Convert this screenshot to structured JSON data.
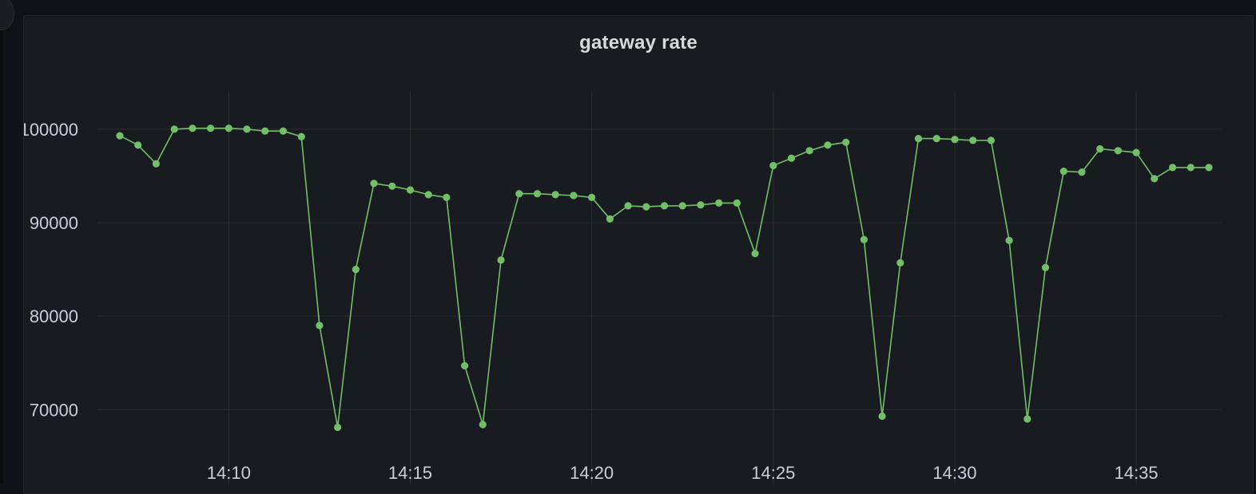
{
  "panel": {
    "title": "gateway rate"
  },
  "colors": {
    "background": "#111217",
    "panel_background": "#181b1f",
    "grid": "#2c2e33",
    "series": "#73bf69",
    "text": "#ccccdc"
  },
  "chart_data": {
    "type": "line",
    "title": "gateway rate",
    "xlabel": "",
    "ylabel": "",
    "grid": true,
    "legend": "none",
    "x_axis": {
      "unit": "time (HH:MM)",
      "range": [
        "14:07",
        "14:37"
      ],
      "ticks": [
        "14:10",
        "14:15",
        "14:20",
        "14:25",
        "14:30",
        "14:35"
      ]
    },
    "y_axis": {
      "range": [
        62000,
        104000
      ],
      "ticks": [
        "100000",
        "90000",
        "80000",
        "70000"
      ]
    },
    "series": [
      {
        "color": "#73bf69",
        "x": [
          "14:07:00",
          "14:07:30",
          "14:08:00",
          "14:08:30",
          "14:09:00",
          "14:09:30",
          "14:10:00",
          "14:10:30",
          "14:11:00",
          "14:11:30",
          "14:12:00",
          "14:12:30",
          "14:13:00",
          "14:13:30",
          "14:14:00",
          "14:14:30",
          "14:15:00",
          "14:15:30",
          "14:16:00",
          "14:16:30",
          "14:17:00",
          "14:17:30",
          "14:18:00",
          "14:18:30",
          "14:19:00",
          "14:19:30",
          "14:20:00",
          "14:20:30",
          "14:21:00",
          "14:21:30",
          "14:22:00",
          "14:22:30",
          "14:23:00",
          "14:23:30",
          "14:24:00",
          "14:24:30",
          "14:25:00",
          "14:25:30",
          "14:26:00",
          "14:26:30",
          "14:27:00",
          "14:27:30",
          "14:28:00",
          "14:28:30",
          "14:29:00",
          "14:29:30",
          "14:30:00",
          "14:30:30",
          "14:31:00",
          "14:31:30",
          "14:32:00",
          "14:32:30",
          "14:33:00",
          "14:33:30",
          "14:34:00",
          "14:34:30",
          "14:35:00",
          "14:35:30",
          "14:36:00",
          "14:36:30",
          "14:37:00"
        ],
        "values": [
          99300,
          98300,
          96300,
          100000,
          100100,
          100100,
          100100,
          100000,
          99800,
          99800,
          99200,
          79000,
          68100,
          85000,
          94200,
          93900,
          93500,
          93000,
          92700,
          74700,
          68400,
          86000,
          93100,
          93100,
          93000,
          92900,
          92700,
          90400,
          91800,
          91700,
          91800,
          91800,
          91900,
          92100,
          92100,
          86700,
          96100,
          96900,
          97700,
          98300,
          98600,
          88200,
          69300,
          85700,
          99000,
          99000,
          98900,
          98800,
          98800,
          88100,
          69000,
          85200,
          95500,
          95400,
          97900,
          97700,
          97500,
          94700,
          95900,
          95900,
          95900
        ]
      }
    ]
  }
}
